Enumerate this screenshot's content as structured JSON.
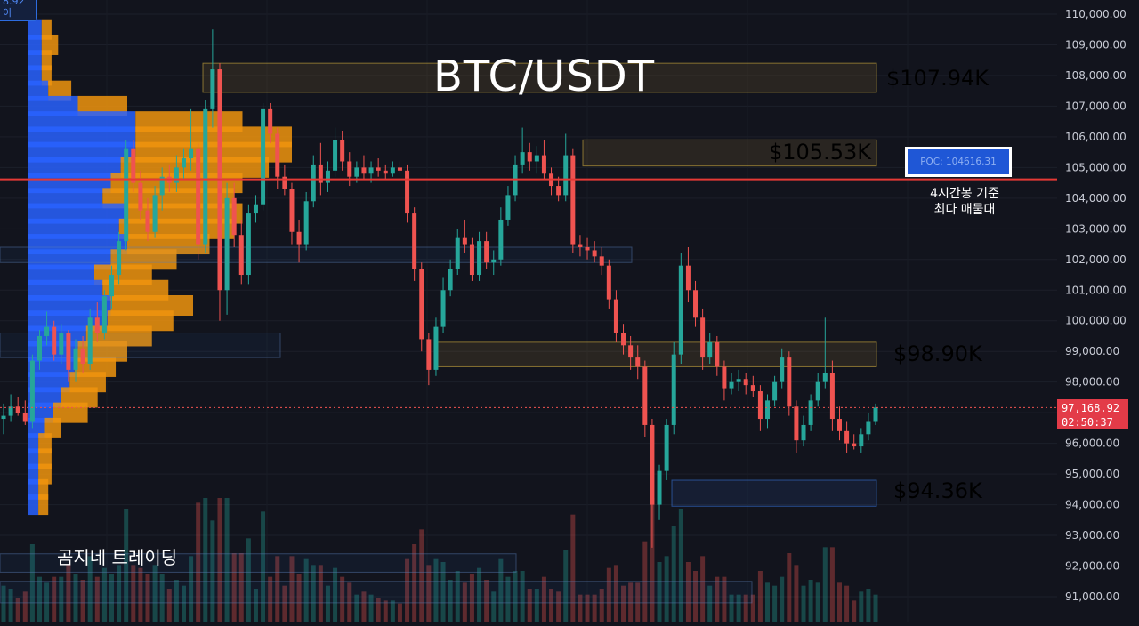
{
  "chart_data": {
    "type": "candlestick",
    "title": "BTC/USDT",
    "watermark": "곰지네 트레이딩",
    "y_axis": {
      "range": [
        90500,
        110300
      ],
      "ticks": [
        "110,000.00",
        "109,000.00",
        "108,000.00",
        "107,000.00",
        "106,000.00",
        "105,000.00",
        "104,000.00",
        "103,000.00",
        "102,000.00",
        "101,000.00",
        "100,000.00",
        "99,000.00",
        "98,000.00",
        "97,000.00",
        "96,000.00",
        "95,000.00",
        "94,000.00",
        "93,000.00",
        "92,000.00",
        "91,000.00"
      ],
      "tick_values": [
        110000,
        109000,
        108000,
        107000,
        106000,
        105000,
        104000,
        103000,
        102000,
        101000,
        100000,
        99000,
        98000,
        97000,
        96000,
        95000,
        94000,
        93000,
        92000,
        91000
      ]
    },
    "levels": [
      {
        "label": "$107.94K",
        "value": 107940,
        "zone": [
          107450,
          108400
        ],
        "color": "#f2c744"
      },
      {
        "label": "$105.53K",
        "value": 105530,
        "zone": [
          105050,
          105900
        ],
        "color": "#f2c744"
      },
      {
        "label": "$98.90K",
        "value": 98900,
        "zone": [
          98500,
          99300
        ],
        "color": "#f2c744"
      },
      {
        "label": "$94.36K",
        "value": 94360,
        "zone": [
          93950,
          94800
        ],
        "color": "#3b82f6"
      }
    ],
    "poc": {
      "label": "POC: 104616.31",
      "value": 104616.31,
      "note_lines": [
        "4시간봉 기준",
        "최다 매물대"
      ]
    },
    "last_price": {
      "value": 97168.92,
      "label": "97,168.92",
      "countdown": "02:50:37"
    },
    "corner_tag": [
      "8.92",
      "이"
    ],
    "candles": [
      {
        "o": 96800,
        "h": 97300,
        "l": 96300,
        "c": 96900
      },
      {
        "o": 96900,
        "h": 97600,
        "l": 96700,
        "c": 97200
      },
      {
        "o": 97200,
        "h": 97500,
        "l": 96900,
        "c": 97000
      },
      {
        "o": 97000,
        "h": 97400,
        "l": 96600,
        "c": 96700
      },
      {
        "o": 96700,
        "h": 98900,
        "l": 96500,
        "c": 98700
      },
      {
        "o": 98700,
        "h": 99700,
        "l": 98400,
        "c": 99500
      },
      {
        "o": 99500,
        "h": 100300,
        "l": 99200,
        "c": 99800
      },
      {
        "o": 99800,
        "h": 100000,
        "l": 98700,
        "c": 98900
      },
      {
        "o": 98900,
        "h": 99900,
        "l": 98600,
        "c": 99600
      },
      {
        "o": 99600,
        "h": 99700,
        "l": 98000,
        "c": 98400
      },
      {
        "o": 98400,
        "h": 99400,
        "l": 98000,
        "c": 99100
      },
      {
        "o": 99100,
        "h": 99500,
        "l": 98300,
        "c": 98600
      },
      {
        "o": 98600,
        "h": 100400,
        "l": 98400,
        "c": 100100
      },
      {
        "o": 100100,
        "h": 100600,
        "l": 99300,
        "c": 99600
      },
      {
        "o": 99600,
        "h": 101000,
        "l": 99400,
        "c": 100800
      },
      {
        "o": 100800,
        "h": 101800,
        "l": 100400,
        "c": 101500
      },
      {
        "o": 101500,
        "h": 102900,
        "l": 101200,
        "c": 102600
      },
      {
        "o": 102600,
        "h": 105900,
        "l": 102300,
        "c": 105600
      },
      {
        "o": 105600,
        "h": 105900,
        "l": 104200,
        "c": 104500
      },
      {
        "o": 104500,
        "h": 104900,
        "l": 103300,
        "c": 103600
      },
      {
        "o": 103600,
        "h": 104000,
        "l": 102600,
        "c": 102900
      },
      {
        "o": 102900,
        "h": 104400,
        "l": 102700,
        "c": 104100
      },
      {
        "o": 104100,
        "h": 105000,
        "l": 103600,
        "c": 104700
      },
      {
        "o": 104700,
        "h": 105100,
        "l": 104200,
        "c": 104500
      },
      {
        "o": 104500,
        "h": 105400,
        "l": 104200,
        "c": 105000
      },
      {
        "o": 105000,
        "h": 105600,
        "l": 104600,
        "c": 105300
      },
      {
        "o": 105300,
        "h": 106900,
        "l": 104900,
        "c": 105600
      },
      {
        "o": 105600,
        "h": 105800,
        "l": 102000,
        "c": 102500
      },
      {
        "o": 102500,
        "h": 107200,
        "l": 102200,
        "c": 106900
      },
      {
        "o": 106900,
        "h": 109500,
        "l": 106300,
        "c": 108200
      },
      {
        "o": 108200,
        "h": 108400,
        "l": 100000,
        "c": 101000
      },
      {
        "o": 101000,
        "h": 104500,
        "l": 100200,
        "c": 104000
      },
      {
        "o": 104000,
        "h": 104500,
        "l": 102400,
        "c": 102800
      },
      {
        "o": 102800,
        "h": 103300,
        "l": 101200,
        "c": 101500
      },
      {
        "o": 101500,
        "h": 103800,
        "l": 101200,
        "c": 103500
      },
      {
        "o": 103500,
        "h": 104100,
        "l": 103200,
        "c": 103800
      },
      {
        "o": 103800,
        "h": 107100,
        "l": 103600,
        "c": 106900
      },
      {
        "o": 106900,
        "h": 107100,
        "l": 105800,
        "c": 106100
      },
      {
        "o": 106100,
        "h": 106300,
        "l": 104300,
        "c": 104700
      },
      {
        "o": 104700,
        "h": 105100,
        "l": 104100,
        "c": 104300
      },
      {
        "o": 104300,
        "h": 104500,
        "l": 102500,
        "c": 102900
      },
      {
        "o": 102900,
        "h": 103300,
        "l": 101900,
        "c": 102500
      },
      {
        "o": 102500,
        "h": 104200,
        "l": 102300,
        "c": 103900
      },
      {
        "o": 103900,
        "h": 105400,
        "l": 103700,
        "c": 105100
      },
      {
        "o": 105100,
        "h": 105800,
        "l": 104100,
        "c": 104500
      },
      {
        "o": 104500,
        "h": 105200,
        "l": 104200,
        "c": 104900
      },
      {
        "o": 104900,
        "h": 106300,
        "l": 104700,
        "c": 105900
      },
      {
        "o": 105900,
        "h": 106200,
        "l": 104900,
        "c": 105200
      },
      {
        "o": 105200,
        "h": 105500,
        "l": 104400,
        "c": 104700
      },
      {
        "o": 104700,
        "h": 105200,
        "l": 104500,
        "c": 105000
      },
      {
        "o": 105000,
        "h": 105400,
        "l": 104600,
        "c": 104800
      },
      {
        "o": 104800,
        "h": 105200,
        "l": 104500,
        "c": 105000
      },
      {
        "o": 105000,
        "h": 105300,
        "l": 104700,
        "c": 104900
      },
      {
        "o": 104900,
        "h": 105100,
        "l": 104600,
        "c": 104800
      },
      {
        "o": 104800,
        "h": 105200,
        "l": 104700,
        "c": 105000
      },
      {
        "o": 105000,
        "h": 105200,
        "l": 104800,
        "c": 104900
      },
      {
        "o": 104900,
        "h": 105100,
        "l": 103200,
        "c": 103500
      },
      {
        "o": 103500,
        "h": 103700,
        "l": 101300,
        "c": 101700
      },
      {
        "o": 101700,
        "h": 101900,
        "l": 99000,
        "c": 99400
      },
      {
        "o": 99400,
        "h": 99600,
        "l": 97900,
        "c": 98400
      },
      {
        "o": 98400,
        "h": 100100,
        "l": 98200,
        "c": 99800
      },
      {
        "o": 99800,
        "h": 101400,
        "l": 99600,
        "c": 101000
      },
      {
        "o": 101000,
        "h": 102000,
        "l": 100800,
        "c": 101700
      },
      {
        "o": 101700,
        "h": 103000,
        "l": 101500,
        "c": 102700
      },
      {
        "o": 102700,
        "h": 103300,
        "l": 102200,
        "c": 102500
      },
      {
        "o": 102500,
        "h": 102700,
        "l": 101300,
        "c": 101500
      },
      {
        "o": 101500,
        "h": 102900,
        "l": 101300,
        "c": 102600
      },
      {
        "o": 102600,
        "h": 102900,
        "l": 101700,
        "c": 101900
      },
      {
        "o": 101900,
        "h": 102300,
        "l": 101500,
        "c": 102000
      },
      {
        "o": 102000,
        "h": 103700,
        "l": 101800,
        "c": 103300
      },
      {
        "o": 103300,
        "h": 104400,
        "l": 103100,
        "c": 104100
      },
      {
        "o": 104100,
        "h": 105400,
        "l": 103900,
        "c": 105100
      },
      {
        "o": 105100,
        "h": 106300,
        "l": 104800,
        "c": 105500
      },
      {
        "o": 105500,
        "h": 105800,
        "l": 104900,
        "c": 105200
      },
      {
        "o": 105200,
        "h": 105700,
        "l": 104800,
        "c": 105400
      },
      {
        "o": 105400,
        "h": 105900,
        "l": 104600,
        "c": 104800
      },
      {
        "o": 104800,
        "h": 105000,
        "l": 104100,
        "c": 104400
      },
      {
        "o": 104400,
        "h": 104700,
        "l": 103900,
        "c": 104100
      },
      {
        "o": 104100,
        "h": 106100,
        "l": 103900,
        "c": 105400
      },
      {
        "o": 105400,
        "h": 105600,
        "l": 102200,
        "c": 102500
      },
      {
        "o": 102500,
        "h": 102800,
        "l": 102100,
        "c": 102400
      },
      {
        "o": 102400,
        "h": 102700,
        "l": 102000,
        "c": 102300
      },
      {
        "o": 102300,
        "h": 102600,
        "l": 101900,
        "c": 102100
      },
      {
        "o": 102100,
        "h": 102400,
        "l": 101500,
        "c": 101800
      },
      {
        "o": 101800,
        "h": 102000,
        "l": 100400,
        "c": 100700
      },
      {
        "o": 100700,
        "h": 101000,
        "l": 99300,
        "c": 99600
      },
      {
        "o": 99600,
        "h": 99900,
        "l": 98900,
        "c": 99200
      },
      {
        "o": 99200,
        "h": 99500,
        "l": 98400,
        "c": 98800
      },
      {
        "o": 98800,
        "h": 99200,
        "l": 98100,
        "c": 98500
      },
      {
        "o": 98500,
        "h": 98700,
        "l": 96200,
        "c": 96600
      },
      {
        "o": 96600,
        "h": 96800,
        "l": 92600,
        "c": 94000
      },
      {
        "o": 94000,
        "h": 95300,
        "l": 93500,
        "c": 95100
      },
      {
        "o": 95100,
        "h": 96800,
        "l": 94800,
        "c": 96600
      },
      {
        "o": 96600,
        "h": 99300,
        "l": 96300,
        "c": 98900
      },
      {
        "o": 98900,
        "h": 102200,
        "l": 98600,
        "c": 101800
      },
      {
        "o": 101800,
        "h": 102400,
        "l": 100600,
        "c": 101000
      },
      {
        "o": 101000,
        "h": 101300,
        "l": 99800,
        "c": 100100
      },
      {
        "o": 100100,
        "h": 100400,
        "l": 98400,
        "c": 98800
      },
      {
        "o": 98800,
        "h": 99600,
        "l": 98600,
        "c": 99300
      },
      {
        "o": 99300,
        "h": 99500,
        "l": 98200,
        "c": 98500
      },
      {
        "o": 98500,
        "h": 98700,
        "l": 97400,
        "c": 97800
      },
      {
        "o": 97800,
        "h": 98300,
        "l": 97600,
        "c": 98000
      },
      {
        "o": 98000,
        "h": 98400,
        "l": 97700,
        "c": 98100
      },
      {
        "o": 98100,
        "h": 98300,
        "l": 97600,
        "c": 97900
      },
      {
        "o": 97900,
        "h": 98200,
        "l": 97500,
        "c": 97700
      },
      {
        "o": 97700,
        "h": 97900,
        "l": 96400,
        "c": 96800
      },
      {
        "o": 96800,
        "h": 97600,
        "l": 96500,
        "c": 97400
      },
      {
        "o": 97400,
        "h": 98200,
        "l": 97200,
        "c": 98000
      },
      {
        "o": 98000,
        "h": 99100,
        "l": 97800,
        "c": 98800
      },
      {
        "o": 98800,
        "h": 99000,
        "l": 96900,
        "c": 97200
      },
      {
        "o": 97200,
        "h": 97400,
        "l": 95700,
        "c": 96100
      },
      {
        "o": 96100,
        "h": 96900,
        "l": 95900,
        "c": 96600
      },
      {
        "o": 96600,
        "h": 97600,
        "l": 96400,
        "c": 97400
      },
      {
        "o": 97400,
        "h": 98300,
        "l": 97200,
        "c": 98000
      },
      {
        "o": 98000,
        "h": 100100,
        "l": 97800,
        "c": 98300
      },
      {
        "o": 98300,
        "h": 98700,
        "l": 96400,
        "c": 96800
      },
      {
        "o": 96800,
        "h": 97200,
        "l": 96100,
        "c": 96400
      },
      {
        "o": 96400,
        "h": 96700,
        "l": 95700,
        "c": 96000
      },
      {
        "o": 96000,
        "h": 96300,
        "l": 95800,
        "c": 95900
      },
      {
        "o": 95900,
        "h": 96500,
        "l": 95700,
        "c": 96300
      },
      {
        "o": 96300,
        "h": 97000,
        "l": 96100,
        "c": 96700
      },
      {
        "o": 96700,
        "h": 97300,
        "l": 96600,
        "c": 97169
      }
    ],
    "volume_profile": [
      {
        "price": 109500,
        "buy": 800,
        "sell": 600
      },
      {
        "price": 109000,
        "buy": 800,
        "sell": 1000
      },
      {
        "price": 108500,
        "buy": 800,
        "sell": 600
      },
      {
        "price": 108000,
        "buy": 800,
        "sell": 600
      },
      {
        "price": 107500,
        "buy": 1200,
        "sell": 1400
      },
      {
        "price": 107000,
        "buy": 3000,
        "sell": 3000
      },
      {
        "price": 106500,
        "buy": 6500,
        "sell": 6500
      },
      {
        "price": 106000,
        "buy": 6500,
        "sell": 9500
      },
      {
        "price": 105500,
        "buy": 6500,
        "sell": 9500
      },
      {
        "price": 105000,
        "buy": 5600,
        "sell": 9000
      },
      {
        "price": 104500,
        "buy": 5000,
        "sell": 8000
      },
      {
        "price": 104000,
        "buy": 4500,
        "sell": 8000
      },
      {
        "price": 103500,
        "buy": 6000,
        "sell": 7000
      },
      {
        "price": 103000,
        "buy": 5500,
        "sell": 7000
      },
      {
        "price": 102500,
        "buy": 6000,
        "sell": 5000
      },
      {
        "price": 102000,
        "buy": 5000,
        "sell": 4000
      },
      {
        "price": 101500,
        "buy": 4000,
        "sell": 3500
      },
      {
        "price": 101000,
        "buy": 4500,
        "sell": 4000
      },
      {
        "price": 100500,
        "buy": 5000,
        "sell": 5000
      },
      {
        "price": 100000,
        "buy": 4800,
        "sell": 4000
      },
      {
        "price": 99500,
        "buy": 3500,
        "sell": 4000
      },
      {
        "price": 99000,
        "buy": 3000,
        "sell": 3000
      },
      {
        "price": 98500,
        "buy": 2800,
        "sell": 2500
      },
      {
        "price": 98000,
        "buy": 2500,
        "sell": 2200
      },
      {
        "price": 97500,
        "buy": 2000,
        "sell": 2200
      },
      {
        "price": 97000,
        "buy": 1500,
        "sell": 2100
      },
      {
        "price": 96500,
        "buy": 1000,
        "sell": 1000
      },
      {
        "price": 96000,
        "buy": 600,
        "sell": 800
      },
      {
        "price": 95500,
        "buy": 600,
        "sell": 800
      },
      {
        "price": 95000,
        "buy": 600,
        "sell": 800
      },
      {
        "price": 94500,
        "buy": 600,
        "sell": 600
      },
      {
        "price": 94000,
        "buy": 600,
        "sell": 600
      }
    ]
  },
  "colors": {
    "background": "#12141d",
    "up": "#26a69a",
    "down": "#ef5350",
    "poc_line": "#e53935",
    "vp_buy": "#2962ff",
    "vp_sell": "#f0940e",
    "level_yellow": "#f2c744",
    "level_blue": "#3b82f6",
    "axis_text": "#c9ccd6"
  }
}
